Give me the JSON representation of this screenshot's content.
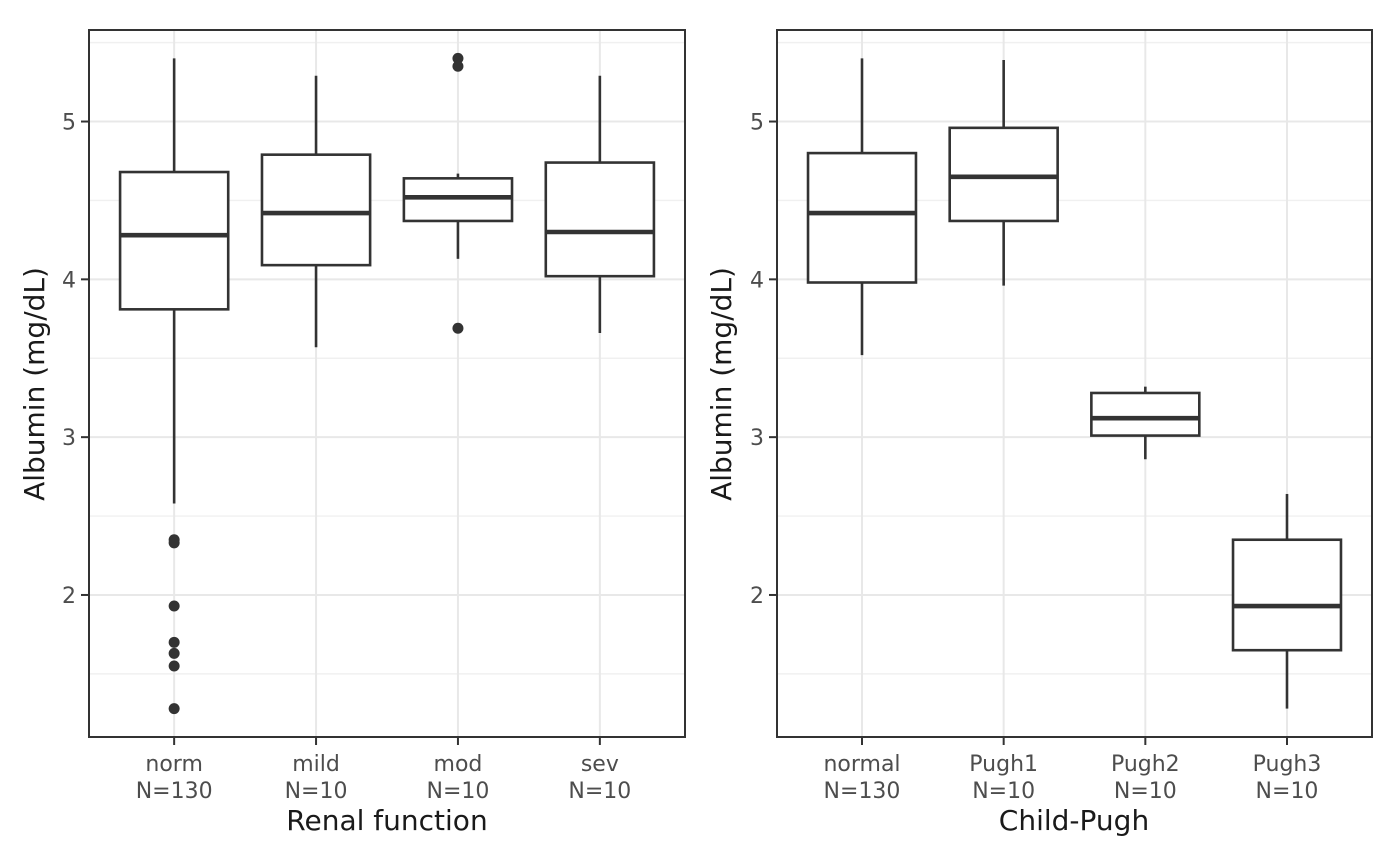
{
  "figure": {
    "background_color": "#ffffff",
    "panel_background_color": "#ffffff",
    "panel_border_color": "#333333",
    "box_stroke_color": "#333333",
    "outlier_color": "#333333",
    "grid_major_color": "#e8e8e8",
    "grid_minor_color": "#f0f0f0",
    "tick_mark_color": "#333333",
    "tick_label_color": "#4d4d4d",
    "axis_title_color": "#1a1a1a"
  },
  "chart_data": [
    {
      "type": "boxplot",
      "title": "",
      "xlabel": "Renal function",
      "ylabel": "Albumin (mg/dL)",
      "ylim": [
        1.1,
        5.58
      ],
      "yticks": [
        2,
        3,
        4,
        5
      ],
      "yticks_minor": [
        1.5,
        2.5,
        3.5,
        4.5,
        5.5
      ],
      "grid": "horizontal major+minor, vertical major at categories",
      "legend": "none",
      "categories": [
        "norm",
        "mild",
        "mod",
        "sev"
      ],
      "sample_labels": [
        "N=130",
        "N=10",
        "N=10",
        "N=10"
      ],
      "boxes": [
        {
          "category": "norm",
          "whisker_low": 2.58,
          "q1": 3.81,
          "median": 4.28,
          "q3": 4.68,
          "whisker_high": 5.4,
          "outliers": [
            2.35,
            2.33,
            1.93,
            1.7,
            1.63,
            1.55,
            1.28
          ]
        },
        {
          "category": "mild",
          "whisker_low": 3.57,
          "q1": 4.09,
          "median": 4.42,
          "q3": 4.79,
          "whisker_high": 5.29,
          "outliers": []
        },
        {
          "category": "mod",
          "whisker_low": 4.13,
          "q1": 4.37,
          "median": 4.52,
          "q3": 4.64,
          "whisker_high": 4.67,
          "outliers": [
            5.4,
            5.35,
            3.69
          ]
        },
        {
          "category": "sev",
          "whisker_low": 3.66,
          "q1": 4.02,
          "median": 4.3,
          "q3": 4.74,
          "whisker_high": 5.29,
          "outliers": []
        }
      ]
    },
    {
      "type": "boxplot",
      "title": "",
      "xlabel": "Child-Pugh",
      "ylabel": "Albumin (mg/dL)",
      "ylim": [
        1.1,
        5.58
      ],
      "yticks": [
        2,
        3,
        4,
        5
      ],
      "yticks_minor": [
        1.5,
        2.5,
        3.5,
        4.5,
        5.5
      ],
      "grid": "horizontal major+minor, vertical major at categories",
      "legend": "none",
      "categories": [
        "normal",
        "Pugh1",
        "Pugh2",
        "Pugh3"
      ],
      "sample_labels": [
        "N=130",
        "N=10",
        "N=10",
        "N=10"
      ],
      "boxes": [
        {
          "category": "normal",
          "whisker_low": 3.52,
          "q1": 3.98,
          "median": 4.42,
          "q3": 4.8,
          "whisker_high": 5.4,
          "outliers": []
        },
        {
          "category": "Pugh1",
          "whisker_low": 3.96,
          "q1": 4.37,
          "median": 4.65,
          "q3": 4.96,
          "whisker_high": 5.39,
          "outliers": []
        },
        {
          "category": "Pugh2",
          "whisker_low": 2.86,
          "q1": 3.01,
          "median": 3.12,
          "q3": 3.28,
          "whisker_high": 3.32,
          "outliers": []
        },
        {
          "category": "Pugh3",
          "whisker_low": 1.28,
          "q1": 1.65,
          "median": 1.93,
          "q3": 2.35,
          "whisker_high": 2.64,
          "outliers": []
        }
      ]
    }
  ]
}
